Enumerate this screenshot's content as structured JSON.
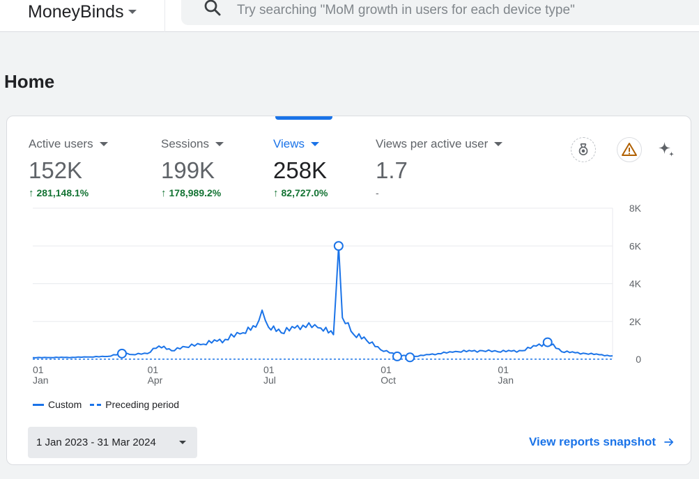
{
  "header": {
    "brand": "MoneyBinds",
    "search_placeholder": "Try searching \"MoM growth in users for each device type\""
  },
  "page": {
    "title": "Home"
  },
  "metrics": [
    {
      "label": "Active users",
      "value": "152K",
      "change": "281,148.1%",
      "direction": "up"
    },
    {
      "label": "Sessions",
      "value": "199K",
      "change": "178,989.2%",
      "direction": "up"
    },
    {
      "label": "Views",
      "value": "258K",
      "change": "82,727.0%",
      "direction": "up",
      "active": true
    },
    {
      "label": "Views per active user",
      "value": "1.7",
      "change": "-",
      "direction": "none"
    }
  ],
  "icons": [
    "badge-icon",
    "warning-icon",
    "sparkle-icon"
  ],
  "colors": {
    "accent": "#1a73e8",
    "positive": "#137333",
    "warning": "#b06000"
  },
  "chart_data": {
    "type": "line",
    "y_ticks": [
      "0",
      "2K",
      "4K",
      "6K",
      "8K"
    ],
    "ylim": [
      0,
      8000
    ],
    "x_tick_labels": [
      {
        "day": "01",
        "month": "Jan"
      },
      {
        "day": "01",
        "month": "Apr"
      },
      {
        "day": "01",
        "month": "Jul"
      },
      {
        "day": "01",
        "month": "Oct"
      },
      {
        "day": "01",
        "month": "Jan"
      }
    ],
    "x_range": [
      "2023-01-01",
      "2024-03-31"
    ],
    "series": [
      {
        "name": "Custom",
        "style": "solid",
        "points": [
          [
            "2023-01-01",
            80
          ],
          [
            "2023-01-15",
            90
          ],
          [
            "2023-02-01",
            100
          ],
          [
            "2023-02-15",
            120
          ],
          [
            "2023-03-01",
            150
          ],
          [
            "2023-03-12",
            300
          ],
          [
            "2023-03-20",
            250
          ],
          [
            "2023-04-01",
            300
          ],
          [
            "2023-04-10",
            700
          ],
          [
            "2023-04-20",
            450
          ],
          [
            "2023-05-01",
            650
          ],
          [
            "2023-05-15",
            800
          ],
          [
            "2023-06-01",
            1050
          ],
          [
            "2023-06-15",
            1400
          ],
          [
            "2023-06-25",
            1700
          ],
          [
            "2023-06-30",
            2600
          ],
          [
            "2023-07-05",
            1700
          ],
          [
            "2023-07-15",
            1400
          ],
          [
            "2023-08-01",
            1800
          ],
          [
            "2023-08-15",
            1650
          ],
          [
            "2023-08-25",
            1300
          ],
          [
            "2023-08-29",
            6000
          ],
          [
            "2023-09-01",
            2200
          ],
          [
            "2023-09-10",
            1300
          ],
          [
            "2023-09-20",
            1000
          ],
          [
            "2023-10-01",
            500
          ],
          [
            "2023-10-15",
            200
          ],
          [
            "2023-10-28",
            150
          ],
          [
            "2023-11-15",
            300
          ],
          [
            "2023-12-01",
            400
          ],
          [
            "2023-12-20",
            450
          ],
          [
            "2024-01-01",
            400
          ],
          [
            "2024-01-20",
            450
          ],
          [
            "2024-02-09",
            900
          ],
          [
            "2024-02-20",
            400
          ],
          [
            "2024-03-10",
            300
          ],
          [
            "2024-03-31",
            180
          ]
        ],
        "markers": [
          [
            "2023-03-12",
            300
          ],
          [
            "2023-08-29",
            6000
          ],
          [
            "2023-10-14",
            150
          ],
          [
            "2023-10-24",
            100
          ],
          [
            "2024-02-09",
            900
          ]
        ]
      },
      {
        "name": "Preceding period",
        "style": "dashed",
        "points": [
          [
            "2023-01-01",
            5
          ],
          [
            "2024-03-31",
            5
          ]
        ]
      }
    ]
  },
  "footer": {
    "date_range": "1 Jan 2023 - 31 Mar 2024",
    "snapshot_link": "View reports snapshot"
  }
}
